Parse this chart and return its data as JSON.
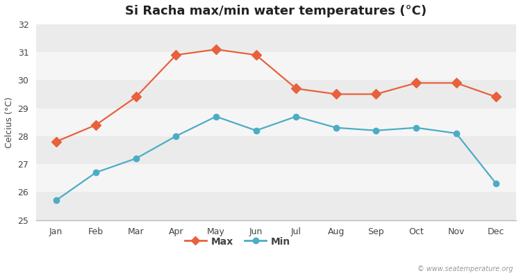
{
  "title": "Si Racha max/min water temperatures (°C)",
  "ylabel": "Celcius (°C)",
  "months": [
    "Jan",
    "Feb",
    "Mar",
    "Apr",
    "May",
    "Jun",
    "Jul",
    "Aug",
    "Sep",
    "Oct",
    "Nov",
    "Dec"
  ],
  "max_temps": [
    27.8,
    28.4,
    29.4,
    30.9,
    31.1,
    30.9,
    29.7,
    29.5,
    29.5,
    29.9,
    29.9,
    29.4
  ],
  "min_temps": [
    25.7,
    26.7,
    27.2,
    28.0,
    28.7,
    28.2,
    28.7,
    28.3,
    28.2,
    28.3,
    28.1,
    26.3
  ],
  "max_color": "#e8603c",
  "min_color": "#4bacc6",
  "ylim": [
    25,
    32
  ],
  "yticks": [
    25,
    26,
    27,
    28,
    29,
    30,
    31,
    32
  ],
  "bg_color": "#ffffff",
  "band_colors": [
    "#ebebeb",
    "#f5f5f5"
  ],
  "grid_color": "#ffffff",
  "watermark": "© www.seatemperature.org",
  "legend_labels": [
    "Max",
    "Min"
  ],
  "title_fontsize": 13,
  "axis_label_fontsize": 9,
  "tick_fontsize": 9,
  "legend_fontsize": 10,
  "line_width": 1.6,
  "marker_size_max": 7,
  "marker_size_min": 6
}
